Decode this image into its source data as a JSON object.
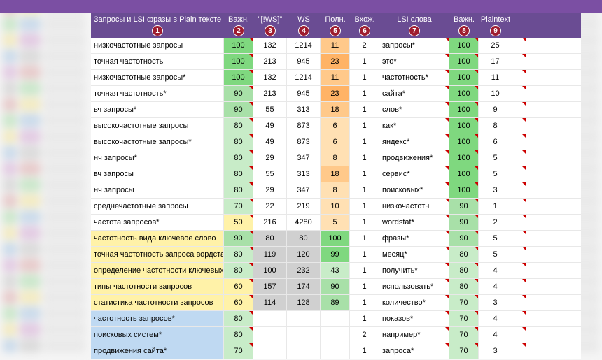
{
  "colors": {
    "header_bg": "#6a4c93",
    "badge_bg": "#9e1c2f",
    "green_high": "#7fd87f",
    "green_mid": "#a8e0a8",
    "green_low": "#c8ecc8",
    "orange_high": "#ffb366",
    "orange_mid": "#ffc98a",
    "orange_low": "#ffe0b3",
    "yellow": "#fff2a8",
    "blue": "#bfd9f2",
    "grey": "#d0d0d0",
    "white": "#ffffff"
  },
  "headers": [
    {
      "label": "Запросы и LSI фразы в Plain тексте",
      "badge": "1",
      "cls": "col0"
    },
    {
      "label": "Важн.",
      "badge": "2",
      "cls": "col1"
    },
    {
      "label": "\"[!WS]\"",
      "badge": "3",
      "cls": "col2"
    },
    {
      "label": "WS",
      "badge": "4",
      "cls": "col3"
    },
    {
      "label": "Полн.",
      "badge": "5",
      "cls": "col4"
    },
    {
      "label": "Вхож.",
      "badge": "6",
      "cls": "col5"
    },
    {
      "label": "LSI слова",
      "badge": "7",
      "cls": "col6"
    },
    {
      "label": "Важн.",
      "badge": "8",
      "cls": "col7"
    },
    {
      "label": "Plaintext",
      "badge": "9",
      "cls": "col8"
    }
  ],
  "rows": [
    {
      "q": "низкочастотные запросы",
      "qbg": "white",
      "imp": 100,
      "impbg": "green_high",
      "ws1": 132,
      "ws2": 1214,
      "poln": 11,
      "polnbg": "orange_mid",
      "vh": 2,
      "lsi": "запросы*",
      "lsibg": "white",
      "imp2": 100,
      "imp2bg": "green_high",
      "pt": 25
    },
    {
      "q": "точная частотность",
      "qbg": "white",
      "imp": 100,
      "impbg": "green_high",
      "ws1": 213,
      "ws2": 945,
      "poln": 23,
      "polnbg": "orange_high",
      "vh": 1,
      "lsi": "это*",
      "lsibg": "white",
      "imp2": 100,
      "imp2bg": "green_high",
      "pt": 17
    },
    {
      "q": "низкочастотные запросы*",
      "qbg": "white",
      "imp": 100,
      "impbg": "green_high",
      "ws1": 132,
      "ws2": 1214,
      "poln": 11,
      "polnbg": "orange_mid",
      "vh": 1,
      "lsi": "частотность*",
      "lsibg": "white",
      "imp2": 100,
      "imp2bg": "green_high",
      "pt": 11
    },
    {
      "q": "точная частотность*",
      "qbg": "white",
      "imp": 90,
      "impbg": "green_mid",
      "ws1": 213,
      "ws2": 945,
      "poln": 23,
      "polnbg": "orange_high",
      "vh": 1,
      "lsi": "сайта*",
      "lsibg": "white",
      "imp2": 100,
      "imp2bg": "green_high",
      "pt": 10
    },
    {
      "q": "вч запросы*",
      "qbg": "white",
      "imp": 90,
      "impbg": "green_mid",
      "ws1": 55,
      "ws2": 313,
      "poln": 18,
      "polnbg": "orange_mid",
      "vh": 1,
      "lsi": "слов*",
      "lsibg": "white",
      "imp2": 100,
      "imp2bg": "green_high",
      "pt": 9
    },
    {
      "q": "высокочастотные запросы",
      "qbg": "white",
      "imp": 80,
      "impbg": "green_low",
      "ws1": 49,
      "ws2": 873,
      "poln": 6,
      "polnbg": "orange_low",
      "vh": 1,
      "lsi": "как*",
      "lsibg": "white",
      "imp2": 100,
      "imp2bg": "green_high",
      "pt": 8
    },
    {
      "q": "высокочастотные запросы*",
      "qbg": "white",
      "imp": 80,
      "impbg": "green_low",
      "ws1": 49,
      "ws2": 873,
      "poln": 6,
      "polnbg": "orange_low",
      "vh": 1,
      "lsi": "яндекс*",
      "lsibg": "white",
      "imp2": 100,
      "imp2bg": "green_high",
      "pt": 6
    },
    {
      "q": "нч запросы*",
      "qbg": "white",
      "imp": 80,
      "impbg": "green_low",
      "ws1": 29,
      "ws2": 347,
      "poln": 8,
      "polnbg": "orange_low",
      "vh": 1,
      "lsi": "продвижения*",
      "lsibg": "white",
      "imp2": 100,
      "imp2bg": "green_high",
      "pt": 5
    },
    {
      "q": "вч запросы",
      "qbg": "white",
      "imp": 80,
      "impbg": "green_low",
      "ws1": 55,
      "ws2": 313,
      "poln": 18,
      "polnbg": "orange_mid",
      "vh": 1,
      "lsi": "сервис*",
      "lsibg": "white",
      "imp2": 100,
      "imp2bg": "green_high",
      "pt": 5
    },
    {
      "q": "нч запросы",
      "qbg": "white",
      "imp": 80,
      "impbg": "green_low",
      "ws1": 29,
      "ws2": 347,
      "poln": 8,
      "polnbg": "orange_low",
      "vh": 1,
      "lsi": "поисковых*",
      "lsibg": "white",
      "imp2": 100,
      "imp2bg": "green_high",
      "pt": 3
    },
    {
      "q": "среднечастотные запросы",
      "qbg": "white",
      "imp": 70,
      "impbg": "green_low",
      "ws1": 22,
      "ws2": 219,
      "poln": 10,
      "polnbg": "orange_low",
      "vh": 1,
      "lsi": "низкочастотн",
      "lsibg": "white",
      "imp2": 90,
      "imp2bg": "green_mid",
      "pt": 1
    },
    {
      "q": "частота запросов*",
      "qbg": "white",
      "imp": 50,
      "impbg": "yellow",
      "ws1": 216,
      "ws2": 4280,
      "poln": 5,
      "polnbg": "orange_low",
      "vh": 1,
      "lsi": "wordstat*",
      "lsibg": "white",
      "imp2": 90,
      "imp2bg": "green_mid",
      "pt": 2
    },
    {
      "q": "частотность вида ключевое слово",
      "qbg": "yellow",
      "imp": 90,
      "impbg": "green_mid",
      "ws1": 80,
      "ws1bg": "grey",
      "ws2": 80,
      "ws2bg": "grey",
      "poln": 100,
      "polnbg": "green_high",
      "vh": 1,
      "lsi": "фразы*",
      "lsibg": "white",
      "imp2": 90,
      "imp2bg": "green_mid",
      "pt": 5
    },
    {
      "q": "точная частотность запроса вордстат",
      "qbg": "yellow",
      "imp": 80,
      "impbg": "green_low",
      "ws1": 119,
      "ws1bg": "grey",
      "ws2": 120,
      "ws2bg": "grey",
      "poln": 99,
      "polnbg": "green_high",
      "vh": 1,
      "lsi": "месяц*",
      "lsibg": "white",
      "imp2": 80,
      "imp2bg": "green_low",
      "pt": 5
    },
    {
      "q": "определение частотности ключевых с",
      "qbg": "yellow",
      "imp": 80,
      "impbg": "green_low",
      "ws1": 100,
      "ws1bg": "grey",
      "ws2": 232,
      "ws2bg": "grey",
      "poln": 43,
      "polnbg": "green_low",
      "vh": 1,
      "lsi": "получить*",
      "lsibg": "white",
      "imp2": 80,
      "imp2bg": "green_low",
      "pt": 4
    },
    {
      "q": "типы частотности запросов",
      "qbg": "yellow",
      "imp": 60,
      "impbg": "yellow",
      "ws1": 157,
      "ws1bg": "grey",
      "ws2": 174,
      "ws2bg": "grey",
      "poln": 90,
      "polnbg": "green_mid",
      "vh": 1,
      "lsi": "использовать*",
      "lsibg": "white",
      "imp2": 80,
      "imp2bg": "green_low",
      "pt": 4
    },
    {
      "q": "статистика частотности запросов",
      "qbg": "yellow",
      "imp": 60,
      "impbg": "yellow",
      "ws1": 114,
      "ws1bg": "grey",
      "ws2": 128,
      "ws2bg": "grey",
      "poln": 89,
      "polnbg": "green_mid",
      "vh": 1,
      "lsi": "количество*",
      "lsibg": "white",
      "imp2": 70,
      "imp2bg": "green_low",
      "pt": 3
    },
    {
      "q": "частотность запросов*",
      "qbg": "blue",
      "imp": 80,
      "impbg": "green_low",
      "ws1": "",
      "ws2": "",
      "poln": "",
      "vh": 1,
      "lsi": "показов*",
      "lsibg": "white",
      "imp2": 70,
      "imp2bg": "green_low",
      "pt": 4
    },
    {
      "q": "поисковых систем*",
      "qbg": "blue",
      "imp": 80,
      "impbg": "green_low",
      "ws1": "",
      "ws2": "",
      "poln": "",
      "vh": 2,
      "lsi": "например*",
      "lsibg": "white",
      "imp2": 70,
      "imp2bg": "green_low",
      "pt": 4
    },
    {
      "q": "продвижения сайта*",
      "qbg": "blue",
      "imp": 70,
      "impbg": "green_low",
      "ws1": "",
      "ws2": "",
      "poln": "",
      "vh": 1,
      "lsi": "запроса*",
      "lsibg": "white",
      "imp2": 70,
      "imp2bg": "green_low",
      "pt": 3
    }
  ]
}
